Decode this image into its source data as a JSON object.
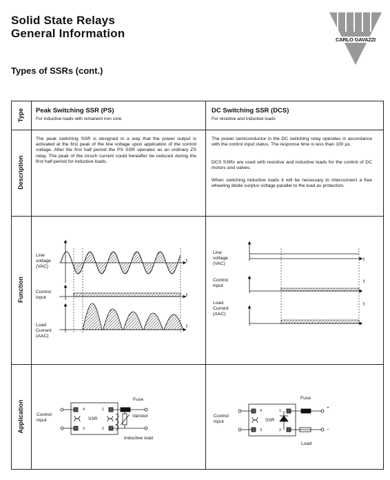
{
  "header": {
    "title_line1": "Solid State Relays",
    "title_line2": "General Information",
    "logo_text": "CARLO GAVAZZI"
  },
  "section_title": "Types of SSRs (cont.)",
  "row_labels": {
    "type": "Type",
    "description": "Description",
    "function": "Function",
    "application": "Application"
  },
  "ps": {
    "title": "Peak Switching SSR (PS)",
    "subtitle": "For inductive loads with remanent iron core",
    "description": "The peak switching SSR is designed in a way that the power output is activated at the first peak of the line voltage upon application of the control voltage. After the first half period the PS SSR operates as an ordinary ZS relay. The peak of the inrush current could hereafter be reduced during the first half-period for inductive loads.",
    "function": {
      "line_voltage": [
        "Line",
        "voltage",
        "(VAC)"
      ],
      "control_input": [
        "Control",
        "input"
      ],
      "load_current": [
        "Load",
        "Current",
        "(AAC)"
      ],
      "t": "t"
    },
    "application": {
      "control_input": [
        "Control",
        "input"
      ],
      "ssr": "SSR",
      "fuse": "Fuse",
      "varistor": "Varistor",
      "inductive_load": "Inductive load",
      "terminals": [
        "4",
        "1",
        "3",
        "2"
      ]
    }
  },
  "dcs": {
    "title": "DC Switching SSR (DCS)",
    "subtitle": "For resistive and inductive loads",
    "description_p1": "The power semiconductor in the DC switching relay operates in accordance with the control input status. The response time is less than 100 µs.",
    "description_p2": "DCS SSRs are used with resistive and inductive loads for the control of DC motors and valves.",
    "description_p3": "When switching inductive loads it will be necessary to interconnect a free wheeling diode surplus voltage parallel to the load as protection.",
    "function": {
      "line_voltage": [
        "Line",
        "voltage",
        "(VAC)"
      ],
      "control_input": [
        "Control",
        "input"
      ],
      "load_current": [
        "Load",
        "Current",
        "(AAC)"
      ],
      "t": "t"
    },
    "application": {
      "control_input": [
        "Control",
        "input"
      ],
      "ssr": "SSR",
      "fuse": "Fuse",
      "load": "Load",
      "plus": "+",
      "minus": "–",
      "terminals": [
        "4",
        "1",
        "3",
        "2"
      ]
    }
  }
}
